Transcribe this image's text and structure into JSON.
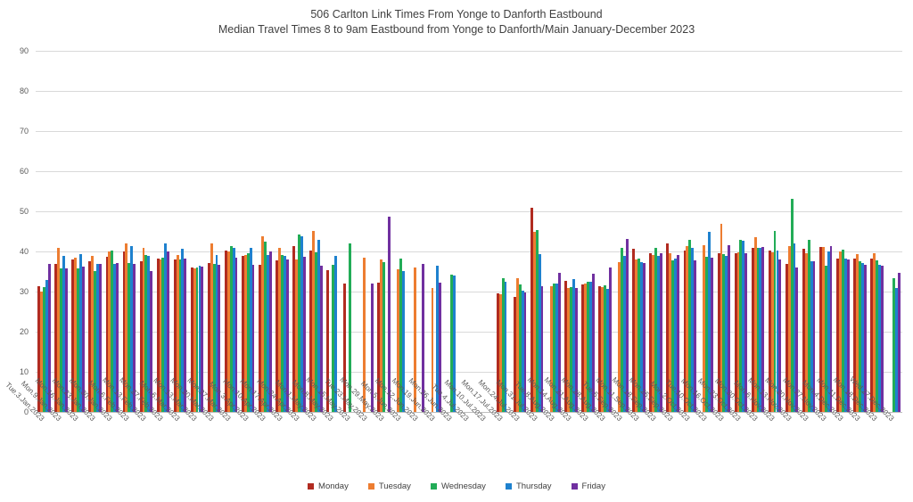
{
  "title": {
    "line1": "506 Carlton Link Times From Yonge to Danforth Eastbound",
    "line2": "Median Travel Times 8 to 9am Eastbound from Yonge to Danforth/Main January-December 2023"
  },
  "chart_data": {
    "type": "bar",
    "title": "506 Carlton Link Times From Yonge to Danforth Eastbound",
    "subtitle": "Median Travel Times 8 to 9am Eastbound from Yonge to Danforth/Main January-December 2023",
    "xlabel": "",
    "ylabel": "",
    "ylim": [
      0,
      90
    ],
    "yticks": [
      0,
      10,
      20,
      30,
      40,
      50,
      60,
      70,
      80,
      90
    ],
    "grid": "horizontal",
    "legend_position": "bottom",
    "gridline_color": "#d9d9d9",
    "categories": [
      "Tue.3.Jan.2023",
      "Mon.9.Jan.2023",
      "Mon.16.Jan.2023",
      "Mon.23.Jan.2023",
      "Mon.30.Jan.2023",
      "Mon.6.Feb.2023",
      "Mon.13.Feb.2023",
      "Mon.27.Feb.2023",
      "Mon.6.Mar.2023",
      "Mon.13.Mar.2023",
      "Mon.20.Mar.2023",
      "Mon.27.Mar.2023",
      "Mon.3.Apr.2023",
      "Mon.10.Apr.2023",
      "Mon.17.Apr.2023",
      "Mon.24.Apr.2023",
      "Mon.1.May.2023",
      "Mon.8.May.2023",
      "Mon.15.May.2023",
      "Tue.23.May.2023",
      "Mon.29.May.2023",
      "Mon.5.Jun.2023",
      "Mon.12.Jun.2023",
      "Mon.19.Jun.2023",
      "Mon.26.Jun.2023",
      "Tue.4.Jul.2023",
      "Mon.10.Jul.2023",
      "Mon.17.Jul.2023",
      "Mon.24.Jul.2023",
      "Mon.31.Jul.2023",
      "Tue.8.Aug.2023",
      "Mon.14.Aug.2023",
      "Mon.21.Aug.2023",
      "Mon.28.Aug.2023",
      "Tue.5.Sep.2023",
      "Mon.11.Sep.2023",
      "Mon.18.Sep.2023",
      "Mon.25.Sep.2023",
      "Mon.2.Oct.2023",
      "Tue.10.Oct.2023",
      "Mon.16.Oct.2023",
      "Mon.23.Oct.2023",
      "Mon.30.Oct.2023",
      "Mon.6.Nov.2023",
      "Mon.13.Nov.2023",
      "Mon.20.Nov.2023",
      "Mon.27.Nov.2023",
      "Mon.4.Dec.2023",
      "Mon.11.Dec.2023",
      "Mon.18.Dec.2023",
      "Wed.27.Dec.2023"
    ],
    "series": [
      {
        "name": "Monday",
        "color": "#b12b20",
        "values": [
          31.4,
          36.9,
          38.0,
          37.6,
          38.7,
          40.1,
          37.6,
          38.2,
          38.0,
          36.0,
          37.2,
          40.3,
          39.0,
          36.6,
          37.8,
          41.3,
          40.2,
          35.4,
          32.1,
          null,
          32.3,
          null,
          null,
          null,
          null,
          null,
          null,
          29.6,
          28.6,
          51.0,
          null,
          32.7,
          31.7,
          31.3,
          null,
          40.7,
          39.6,
          42.1,
          40.2,
          null,
          39.5,
          39.6,
          41.0,
          40.2,
          36.9,
          40.6,
          41.2,
          38.2,
          38.2,
          38.2,
          null
        ]
      },
      {
        "name": "Tuesday",
        "color": "#ed7d31",
        "values": [
          30.1,
          41.0,
          38.5,
          38.9,
          40.1,
          42.0,
          40.9,
          38.0,
          39.1,
          35.8,
          41.9,
          40.0,
          39.2,
          43.7,
          41.0,
          38.0,
          45.1,
          null,
          null,
          38.5,
          38.0,
          35.6,
          35.9,
          31.0,
          null,
          null,
          null,
          29.3,
          33.4,
          45.0,
          31.3,
          31.0,
          32.0,
          31.2,
          37.4,
          38.0,
          39.1,
          39.5,
          41.3,
          41.5,
          47.0,
          39.8,
          43.6,
          39.8,
          41.3,
          39.5,
          41.1,
          40.1,
          39.3,
          39.5,
          null
        ]
      },
      {
        "name": "Wednesday",
        "color": "#22ac57",
        "values": [
          31.1,
          35.8,
          35.8,
          35.2,
          40.3,
          37.1,
          39.2,
          38.4,
          38.0,
          36.1,
          36.9,
          41.4,
          39.5,
          42.5,
          39.1,
          44.2,
          39.8,
          36.7,
          42.1,
          null,
          37.4,
          38.2,
          null,
          null,
          34.2,
          null,
          null,
          33.4,
          31.7,
          45.3,
          31.9,
          31.1,
          32.4,
          31.6,
          41.0,
          38.2,
          41.0,
          37.8,
          43.0,
          38.7,
          39.3,
          42.8,
          40.8,
          45.2,
          53.2,
          43.0,
          36.5,
          40.4,
          37.5,
          37.8,
          33.4
        ]
      },
      {
        "name": "Thursday",
        "color": "#1e81ce",
        "values": [
          32.9,
          38.9,
          39.3,
          36.9,
          37.0,
          41.3,
          38.8,
          42.0,
          40.6,
          36.4,
          39.2,
          41.0,
          41.0,
          39.1,
          38.8,
          43.8,
          42.9,
          39.0,
          null,
          null,
          null,
          35.2,
          null,
          36.5,
          33.9,
          null,
          null,
          32.4,
          30.2,
          39.3,
          31.9,
          33.2,
          32.4,
          30.7,
          38.9,
          37.3,
          38.9,
          38.2,
          41.0,
          45.0,
          38.9,
          42.6,
          40.8,
          40.2,
          42.1,
          37.6,
          39.9,
          38.2,
          37.1,
          36.6,
          31.0
        ]
      },
      {
        "name": "Friday",
        "color": "#7030a0",
        "values": [
          36.8,
          35.8,
          36.2,
          36.9,
          37.2,
          37.0,
          35.2,
          39.9,
          38.3,
          36.2,
          36.7,
          38.5,
          36.6,
          39.9,
          37.9,
          38.7,
          36.5,
          null,
          null,
          32.0,
          48.7,
          null,
          36.9,
          32.2,
          null,
          null,
          null,
          null,
          29.7,
          31.3,
          34.7,
          30.9,
          34.5,
          35.9,
          43.2,
          37.1,
          39.5,
          39.1,
          37.8,
          38.5,
          41.5,
          39.5,
          41.2,
          38.0,
          35.9,
          37.5,
          41.3,
          38.0,
          36.7,
          36.4,
          34.7
        ]
      }
    ]
  },
  "legend": {
    "items": [
      "Monday",
      "Tuesday",
      "Wednesday",
      "Thursday",
      "Friday"
    ]
  }
}
